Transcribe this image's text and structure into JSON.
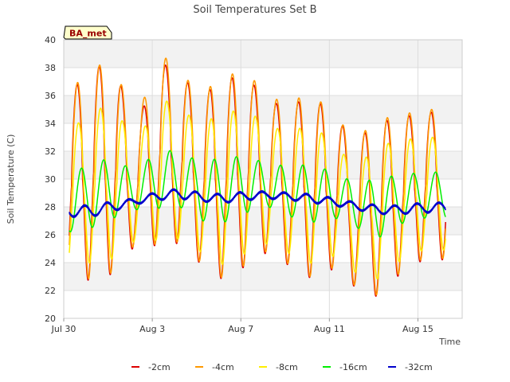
{
  "chart_data": {
    "type": "line",
    "title": "Soil Temperatures Set B",
    "xlabel": "Time",
    "ylabel": "Soil Temperature (C)",
    "badge": "BA_met",
    "ylim": [
      20,
      40
    ],
    "yticks": [
      20,
      22,
      24,
      26,
      28,
      30,
      32,
      34,
      36,
      38,
      40
    ],
    "xlim_days": [
      0,
      18
    ],
    "xticks": [
      {
        "label": "Jul 30",
        "day": 0
      },
      {
        "label": "Aug 3",
        "day": 4
      },
      {
        "label": "Aug 7",
        "day": 8
      },
      {
        "label": "Aug 11",
        "day": 12
      },
      {
        "label": "Aug 15",
        "day": 16
      }
    ],
    "grid": true,
    "legend_position": "bottom",
    "x_day_start": 0.25,
    "x_day_end": 17.25,
    "series": [
      {
        "name": "-2cm",
        "color": "#dd0000",
        "depth": 2,
        "daily_max": [
          36.2,
          37.9,
          38.4,
          33.3,
          38.6,
          37.4,
          36.0,
          37.2,
          37.4,
          35.5,
          35.3,
          36.0,
          34.3,
          32.9,
          34.1,
          34.4,
          34.8
        ],
        "daily_min": [
          22.4,
          22.8,
          23.2,
          25.3,
          25.2,
          25.4,
          23.8,
          22.7,
          23.8,
          24.8,
          23.7,
          22.8,
          23.6,
          22.1,
          21.5,
          23.3,
          24.2
        ]
      },
      {
        "name": "-4cm",
        "color": "#ff9900",
        "depth": 4,
        "daily_max": [
          36.3,
          38.0,
          38.5,
          33.7,
          39.3,
          37.6,
          36.2,
          37.4,
          37.8,
          35.8,
          35.6,
          36.2,
          34.4,
          33.0,
          34.3,
          34.6,
          35.0
        ],
        "daily_min": [
          22.5,
          22.9,
          23.3,
          25.4,
          25.3,
          25.5,
          23.9,
          22.8,
          23.9,
          24.9,
          23.8,
          22.9,
          23.7,
          22.2,
          21.6,
          23.4,
          24.3
        ]
      },
      {
        "name": "-8cm",
        "color": "#ffee00",
        "depth": 8,
        "daily_max": [
          33.5,
          34.8,
          35.5,
          32.2,
          36.0,
          35.0,
          34.0,
          34.8,
          35.0,
          33.8,
          33.4,
          34.0,
          32.3,
          31.0,
          32.4,
          32.8,
          33.0
        ],
        "daily_min": [
          23.7,
          24.0,
          24.3,
          25.6,
          25.6,
          25.7,
          24.7,
          23.8,
          24.7,
          25.4,
          24.6,
          23.9,
          24.5,
          23.2,
          22.8,
          24.2,
          24.9
        ]
      },
      {
        "name": "-16cm",
        "color": "#00ee00",
        "depth": 16,
        "daily_max": [
          30.4,
          31.1,
          31.6,
          30.4,
          32.2,
          31.9,
          31.2,
          31.6,
          31.6,
          31.1,
          30.9,
          31.1,
          30.4,
          29.7,
          30.1,
          30.3,
          30.5
        ],
        "daily_min": [
          26.2,
          26.5,
          27.2,
          27.8,
          27.9,
          28.0,
          27.0,
          26.9,
          27.6,
          28.0,
          27.3,
          26.9,
          27.2,
          26.5,
          25.8,
          26.8,
          27.2
        ]
      },
      {
        "name": "-32cm",
        "color": "#0000cc",
        "depth": 32,
        "daily_max": [
          28.1,
          28.1,
          28.4,
          28.6,
          29.1,
          29.3,
          29.0,
          28.9,
          29.1,
          29.1,
          29.0,
          28.9,
          28.6,
          28.3,
          28.1,
          28.1,
          28.3
        ],
        "daily_min": [
          27.3,
          27.3,
          27.7,
          28.2,
          28.5,
          28.6,
          28.4,
          28.3,
          28.5,
          28.6,
          28.5,
          28.3,
          28.1,
          27.8,
          27.5,
          27.5,
          27.6
        ]
      }
    ]
  }
}
